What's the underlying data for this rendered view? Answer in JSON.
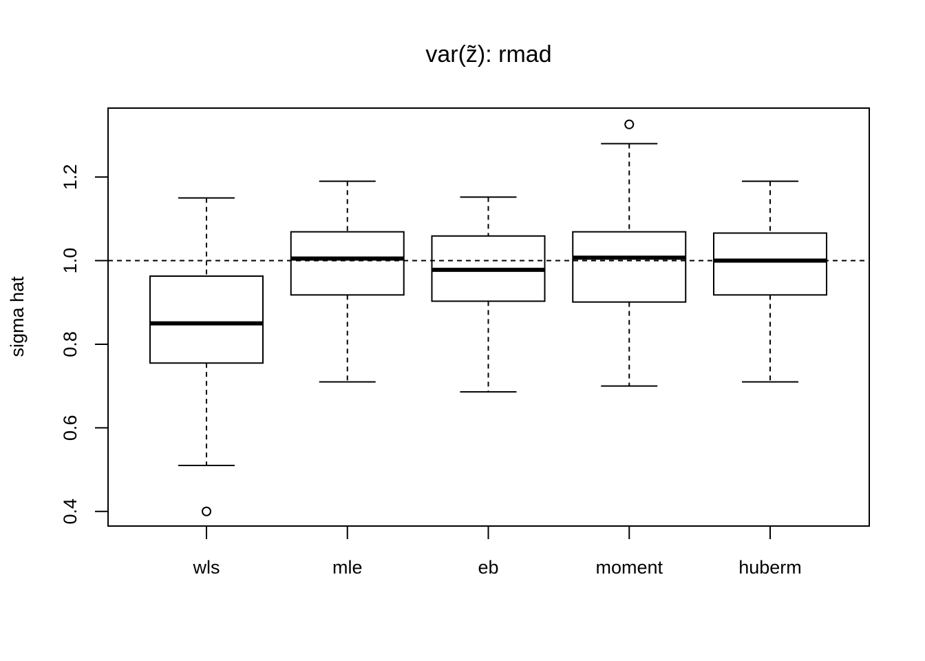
{
  "chart_data": {
    "type": "boxplot",
    "title": "var(z̃): rmad",
    "xlabel": "",
    "ylabel": "sigma hat",
    "ylim": [
      0.365,
      1.365
    ],
    "yticks": [
      0.4,
      0.6,
      0.8,
      1.0,
      1.2
    ],
    "ytick_labels": [
      "0.4",
      "0.6",
      "0.8",
      "1.0",
      "1.2"
    ],
    "reference_line": 1.0,
    "categories": [
      "wls",
      "mle",
      "eb",
      "moment",
      "huberm"
    ],
    "boxes": [
      {
        "name": "wls",
        "whisker_low": 0.51,
        "q1": 0.755,
        "median": 0.85,
        "q3": 0.963,
        "whisker_high": 1.15,
        "outliers": [
          0.4
        ]
      },
      {
        "name": "mle",
        "whisker_low": 0.71,
        "q1": 0.918,
        "median": 1.005,
        "q3": 1.069,
        "whisker_high": 1.19,
        "outliers": []
      },
      {
        "name": "eb",
        "whisker_low": 0.686,
        "q1": 0.903,
        "median": 0.978,
        "q3": 1.059,
        "whisker_high": 1.152,
        "outliers": []
      },
      {
        "name": "moment",
        "whisker_low": 0.7,
        "q1": 0.901,
        "median": 1.007,
        "q3": 1.069,
        "whisker_high": 1.28,
        "outliers": [
          1.326
        ]
      },
      {
        "name": "huberm",
        "whisker_low": 0.71,
        "q1": 0.918,
        "median": 1.0,
        "q3": 1.066,
        "whisker_high": 1.19,
        "outliers": []
      }
    ]
  }
}
